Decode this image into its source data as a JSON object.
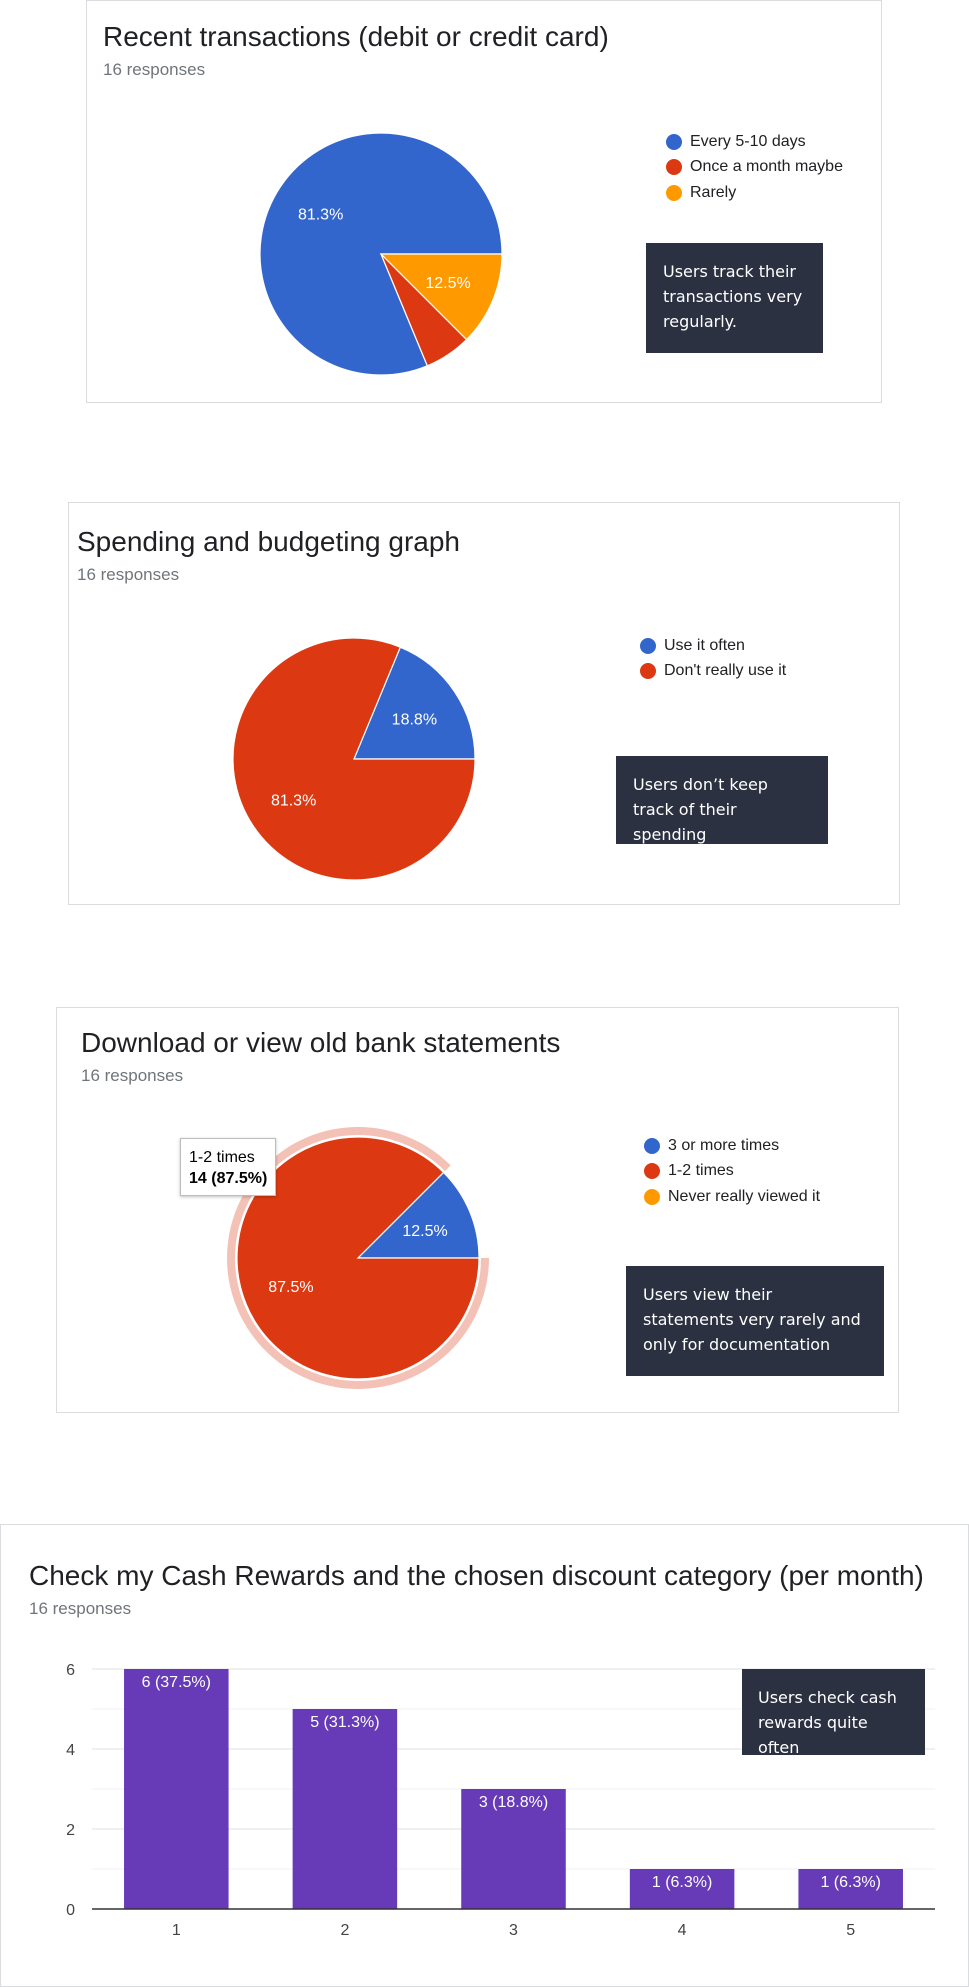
{
  "colors": {
    "blue": "#3366cc",
    "red": "#dc3912",
    "orange": "#ff9900",
    "purple": "#673ab7",
    "highlight": "#f3c1b6",
    "note_bg": "#2c3142"
  },
  "charts": [
    {
      "title": "Recent transactions (debit or credit card)",
      "responses": "16 responses",
      "note": "Users track their transactions very regularly.",
      "legend": [
        {
          "label": "Every 5-10 days",
          "color": "#3366cc"
        },
        {
          "label": "Once a month maybe",
          "color": "#dc3912"
        },
        {
          "label": "Rarely",
          "color": "#ff9900"
        }
      ]
    },
    {
      "title": "Spending and budgeting graph",
      "responses": "16 responses",
      "note": "Users don’t keep track of their spending",
      "legend": [
        {
          "label": "Use it often",
          "color": "#3366cc"
        },
        {
          "label": "Don't really use it",
          "color": "#dc3912"
        }
      ]
    },
    {
      "title": "Download or view old bank statements",
      "responses": "16 responses",
      "note": "Users view their statements very rarely and only for documentation",
      "legend": [
        {
          "label": "3 or more times",
          "color": "#3366cc"
        },
        {
          "label": "1-2 times",
          "color": "#dc3912"
        },
        {
          "label": "Never really viewed it",
          "color": "#ff9900"
        }
      ],
      "tooltip": {
        "label": "1-2 times",
        "value": "14 (87.5%)"
      }
    },
    {
      "title": "Check my Cash Rewards and the chosen discount category (per month)",
      "responses": "16 responses",
      "note": "Users check cash rewards quite often"
    }
  ],
  "chart_data": [
    {
      "type": "pie",
      "title": "Recent transactions (debit or credit card)",
      "categories": [
        "Every 5-10 days",
        "Once a month maybe",
        "Rarely"
      ],
      "values": [
        13,
        1,
        2
      ],
      "labels": [
        "81.3%",
        "",
        "12.5%"
      ],
      "colors": [
        "#3366cc",
        "#dc3912",
        "#ff9900"
      ]
    },
    {
      "type": "pie",
      "title": "Spending and budgeting graph",
      "categories": [
        "Use it often",
        "Don't really use it"
      ],
      "values": [
        3,
        13
      ],
      "labels": [
        "18.8%",
        "81.3%"
      ],
      "colors": [
        "#3366cc",
        "#dc3912"
      ]
    },
    {
      "type": "pie",
      "title": "Download or view old bank statements",
      "categories": [
        "3 or more times",
        "1-2 times",
        "Never really viewed it"
      ],
      "values": [
        2,
        14,
        0
      ],
      "labels": [
        "12.5%",
        "87.5%",
        ""
      ],
      "colors": [
        "#3366cc",
        "#dc3912",
        "#ff9900"
      ],
      "highlighted": "1-2 times"
    },
    {
      "type": "bar",
      "title": "Check my Cash Rewards and the chosen discount category (per month)",
      "categories": [
        "1",
        "2",
        "3",
        "4",
        "5"
      ],
      "values": [
        6,
        5,
        3,
        1,
        1
      ],
      "labels": [
        "6 (37.5%)",
        "5 (31.3%)",
        "3 (18.8%)",
        "1 (6.3%)",
        "1 (6.3%)"
      ],
      "yticks": [
        "0",
        "2",
        "4",
        "6"
      ],
      "ylim": [
        0,
        6
      ],
      "grid": true,
      "color": "#673ab7"
    }
  ]
}
